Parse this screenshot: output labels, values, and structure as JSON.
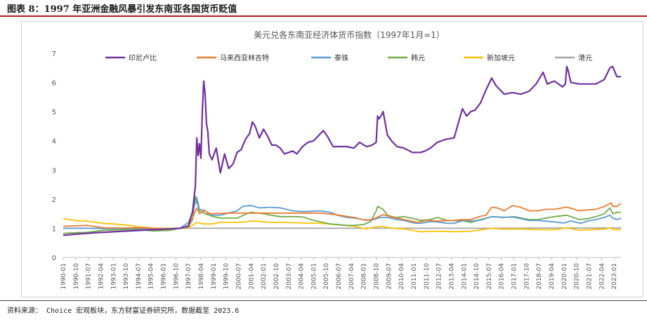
{
  "figure": {
    "title": "图表 8：1997 年亚洲金融风暴引发东南亚各国货币贬值",
    "source": "资料来源： Choice 宏观板块，东方财富证券研究所，数据截至 2023.6"
  },
  "chart_data": {
    "type": "line",
    "title": "美元兑各东南亚经济体货币指数（1997年1月=1）",
    "xlabel": "",
    "ylabel": "",
    "ylim": [
      0,
      7
    ],
    "yticks": [
      0,
      1,
      2,
      3,
      4,
      5,
      6,
      7
    ],
    "xlim": [
      "1990-01",
      "2023-06"
    ],
    "xticks": [
      "1990-01",
      "1990-10",
      "1991-07",
      "1992-04",
      "1993-01",
      "1993-10",
      "1994-07",
      "1995-04",
      "1996-01",
      "1996-10",
      "1997-07",
      "1998-04",
      "1999-01",
      "1999-10",
      "2000-07",
      "2001-04",
      "2002-01",
      "2002-10",
      "2003-07",
      "2004-04",
      "2005-01",
      "2005-10",
      "2006-07",
      "2007-04",
      "2008-01",
      "2008-10",
      "2009-07",
      "2010-04",
      "2011-01",
      "2011-10",
      "2012-07",
      "2013-04",
      "2014-01",
      "2014-10",
      "2015-07",
      "2016-04",
      "2017-01",
      "2017-10",
      "2018-07",
      "2019-04",
      "2020-01",
      "2020-10",
      "2021-07",
      "2022-04",
      "2023-01"
    ],
    "grid": false,
    "legend": "top",
    "series": [
      {
        "name": "印尼卢比",
        "color": "#7030a0",
        "x": [
          "1990-01",
          "1991-01",
          "1992-01",
          "1993-01",
          "1994-01",
          "1995-01",
          "1996-01",
          "1997-01",
          "1997-07",
          "1997-10",
          "1997-12",
          "1998-01",
          "1998-02",
          "1998-03",
          "1998-04",
          "1998-05",
          "1998-06",
          "1998-07",
          "1998-08",
          "1998-09",
          "1998-10",
          "1998-12",
          "1999-03",
          "1999-06",
          "1999-09",
          "1999-12",
          "2000-03",
          "2000-06",
          "2000-09",
          "2000-12",
          "2001-03",
          "2001-05",
          "2001-07",
          "2001-10",
          "2002-01",
          "2002-04",
          "2002-07",
          "2002-10",
          "2003-01",
          "2003-04",
          "2003-07",
          "2003-10",
          "2004-01",
          "2004-05",
          "2004-09",
          "2005-01",
          "2005-05",
          "2005-08",
          "2005-11",
          "2006-03",
          "2006-07",
          "2007-01",
          "2007-06",
          "2007-10",
          "2008-03",
          "2008-07",
          "2008-10",
          "2008-11",
          "2008-12",
          "2009-02",
          "2009-03",
          "2009-06",
          "2009-09",
          "2010-01",
          "2010-06",
          "2010-12",
          "2011-06",
          "2011-09",
          "2012-01",
          "2012-06",
          "2012-12",
          "2013-06",
          "2013-09",
          "2013-12",
          "2014-03",
          "2014-06",
          "2014-09",
          "2015-01",
          "2015-05",
          "2015-09",
          "2015-12",
          "2016-06",
          "2016-12",
          "2017-06",
          "2017-12",
          "2018-05",
          "2018-10",
          "2019-01",
          "2019-06",
          "2019-12",
          "2020-02",
          "2020-03",
          "2020-04",
          "2020-06",
          "2020-12",
          "2021-06",
          "2021-12",
          "2022-06",
          "2022-10",
          "2022-12",
          "2023-03",
          "2023-06"
        ],
        "values": [
          0.76,
          0.81,
          0.85,
          0.88,
          0.91,
          0.94,
          0.97,
          1.0,
          1.08,
          1.57,
          2.45,
          4.1,
          3.5,
          3.9,
          3.4,
          5.0,
          6.05,
          5.6,
          4.6,
          4.3,
          3.55,
          3.35,
          3.75,
          2.9,
          3.55,
          3.05,
          3.2,
          3.6,
          3.7,
          4.05,
          4.25,
          4.65,
          4.5,
          4.1,
          4.4,
          4.15,
          3.85,
          3.85,
          3.75,
          3.55,
          3.6,
          3.65,
          3.55,
          3.8,
          3.95,
          4.0,
          4.2,
          4.35,
          4.15,
          3.8,
          3.8,
          3.8,
          3.75,
          3.95,
          3.8,
          3.85,
          3.95,
          4.85,
          4.75,
          4.9,
          5.0,
          4.2,
          4.0,
          3.8,
          3.75,
          3.6,
          3.6,
          3.65,
          3.75,
          3.95,
          4.05,
          4.1,
          4.6,
          5.1,
          4.85,
          5.0,
          5.05,
          5.3,
          5.75,
          6.15,
          5.9,
          5.6,
          5.65,
          5.6,
          5.7,
          5.95,
          6.35,
          5.95,
          6.05,
          5.85,
          5.95,
          6.55,
          6.4,
          6.0,
          5.95,
          5.95,
          5.95,
          6.1,
          6.5,
          6.55,
          6.2,
          6.2
        ]
      },
      {
        "name": "马来西亚林吉特",
        "color": "#ed7d31",
        "x": [
          "1990-01",
          "1991-06",
          "1992-06",
          "1993-06",
          "1994-06",
          "1995-06",
          "1996-06",
          "1997-01",
          "1997-07",
          "1997-10",
          "1998-01",
          "1998-03",
          "1998-07",
          "1998-09",
          "2000-01",
          "2005-07",
          "2006-06",
          "2007-06",
          "2008-03",
          "2008-07",
          "2009-03",
          "2009-09",
          "2010-06",
          "2011-04",
          "2011-10",
          "2012-06",
          "2013-06",
          "2013-12",
          "2014-06",
          "2014-12",
          "2015-05",
          "2015-09",
          "2016-01",
          "2016-06",
          "2016-12",
          "2017-06",
          "2017-12",
          "2018-06",
          "2018-12",
          "2019-06",
          "2020-03",
          "2020-12",
          "2021-06",
          "2021-12",
          "2022-06",
          "2022-11",
          "2022-12",
          "2023-03",
          "2023-06"
        ],
        "values": [
          1.07,
          1.1,
          1.02,
          1.01,
          1.02,
          1.0,
          0.99,
          1.0,
          1.06,
          1.35,
          1.7,
          1.5,
          1.62,
          1.5,
          1.52,
          1.52,
          1.46,
          1.37,
          1.27,
          1.3,
          1.47,
          1.39,
          1.3,
          1.2,
          1.27,
          1.25,
          1.27,
          1.3,
          1.3,
          1.4,
          1.45,
          1.72,
          1.7,
          1.6,
          1.78,
          1.72,
          1.6,
          1.6,
          1.65,
          1.65,
          1.73,
          1.6,
          1.63,
          1.65,
          1.75,
          1.87,
          1.75,
          1.75,
          1.85
        ]
      },
      {
        "name": "泰铢",
        "color": "#5b9bd5",
        "x": [
          "1990-01",
          "1991-06",
          "1992-06",
          "1993-06",
          "1994-06",
          "1995-06",
          "1996-06",
          "1997-01",
          "1997-07",
          "1997-10",
          "1998-01",
          "1998-03",
          "1998-07",
          "1998-12",
          "1999-06",
          "2000-06",
          "2000-10",
          "2001-04",
          "2001-10",
          "2002-06",
          "2003-01",
          "2003-10",
          "2004-06",
          "2005-06",
          "2006-01",
          "2006-06",
          "2007-01",
          "2007-06",
          "2008-01",
          "2008-06",
          "2009-01",
          "2009-06",
          "2010-01",
          "2010-06",
          "2011-01",
          "2011-06",
          "2012-01",
          "2012-06",
          "2013-01",
          "2013-06",
          "2014-01",
          "2014-06",
          "2015-01",
          "2015-09",
          "2016-06",
          "2017-01",
          "2017-12",
          "2018-06",
          "2019-06",
          "2020-01",
          "2020-06",
          "2021-01",
          "2021-06",
          "2021-12",
          "2022-06",
          "2022-10",
          "2022-12",
          "2023-03",
          "2023-06"
        ],
        "values": [
          1.0,
          1.0,
          0.99,
          0.99,
          0.99,
          0.98,
          0.99,
          1.0,
          1.2,
          1.55,
          2.05,
          1.65,
          1.6,
          1.45,
          1.45,
          1.6,
          1.75,
          1.78,
          1.7,
          1.72,
          1.7,
          1.6,
          1.57,
          1.6,
          1.55,
          1.45,
          1.37,
          1.35,
          1.3,
          1.27,
          1.37,
          1.37,
          1.3,
          1.27,
          1.18,
          1.17,
          1.23,
          1.22,
          1.17,
          1.17,
          1.27,
          1.25,
          1.28,
          1.4,
          1.38,
          1.38,
          1.27,
          1.27,
          1.22,
          1.18,
          1.25,
          1.17,
          1.25,
          1.3,
          1.37,
          1.45,
          1.35,
          1.3,
          1.35
        ]
      },
      {
        "name": "韩元",
        "color": "#70ad47",
        "x": [
          "1990-01",
          "1991-06",
          "1992-06",
          "1993-06",
          "1994-06",
          "1995-06",
          "1996-06",
          "1997-01",
          "1997-07",
          "1997-10",
          "1997-12",
          "1998-01",
          "1998-03",
          "1998-07",
          "1999-01",
          "1999-06",
          "2000-06",
          "2001-01",
          "2001-04",
          "2002-01",
          "2002-06",
          "2003-01",
          "2004-01",
          "2004-06",
          "2005-01",
          "2006-01",
          "2007-01",
          "2007-06",
          "2008-01",
          "2008-06",
          "2008-10",
          "2008-11",
          "2009-03",
          "2009-06",
          "2009-12",
          "2010-06",
          "2011-01",
          "2011-06",
          "2012-01",
          "2012-06",
          "2013-01",
          "2014-01",
          "2014-06",
          "2015-01",
          "2015-09",
          "2016-06",
          "2017-01",
          "2017-12",
          "2018-06",
          "2019-06",
          "2020-03",
          "2020-12",
          "2021-06",
          "2021-12",
          "2022-06",
          "2022-10",
          "2022-12",
          "2023-03",
          "2023-06"
        ],
        "values": [
          0.83,
          0.86,
          0.93,
          0.95,
          0.96,
          0.91,
          0.93,
          1.0,
          1.05,
          1.3,
          2.1,
          1.9,
          1.6,
          1.5,
          1.4,
          1.35,
          1.35,
          1.5,
          1.55,
          1.5,
          1.45,
          1.4,
          1.4,
          1.38,
          1.27,
          1.15,
          1.1,
          1.1,
          1.13,
          1.23,
          1.6,
          1.75,
          1.65,
          1.45,
          1.37,
          1.4,
          1.33,
          1.27,
          1.3,
          1.37,
          1.27,
          1.25,
          1.2,
          1.3,
          1.4,
          1.37,
          1.4,
          1.3,
          1.3,
          1.4,
          1.45,
          1.3,
          1.33,
          1.4,
          1.5,
          1.7,
          1.5,
          1.55,
          1.55
        ]
      },
      {
        "name": "新加坡元",
        "color": "#ffc000",
        "x": [
          "1990-01",
          "1990-06",
          "1991-01",
          "1991-06",
          "1992-01",
          "1992-06",
          "1993-01",
          "1993-06",
          "1994-01",
          "1994-06",
          "1995-01",
          "1995-06",
          "1996-01",
          "1996-06",
          "1997-01",
          "1997-07",
          "1997-10",
          "1998-01",
          "1998-06",
          "1998-12",
          "1999-06",
          "2000-06",
          "2001-06",
          "2002-06",
          "2003-06",
          "2004-06",
          "2005-06",
          "2006-06",
          "2007-06",
          "2008-03",
          "2008-10",
          "2009-03",
          "2009-06",
          "2010-06",
          "2011-06",
          "2012-06",
          "2013-06",
          "2014-06",
          "2015-09",
          "2016-06",
          "2017-06",
          "2018-06",
          "2019-06",
          "2020-03",
          "2020-12",
          "2021-06",
          "2022-06",
          "2022-10",
          "2023-01",
          "2023-06"
        ],
        "values": [
          1.33,
          1.3,
          1.25,
          1.25,
          1.2,
          1.17,
          1.15,
          1.13,
          1.1,
          1.05,
          1.03,
          1.0,
          1.0,
          1.0,
          1.0,
          1.03,
          1.1,
          1.2,
          1.15,
          1.15,
          1.2,
          1.2,
          1.25,
          1.2,
          1.2,
          1.18,
          1.17,
          1.12,
          1.07,
          0.98,
          1.05,
          1.07,
          1.02,
          0.98,
          0.88,
          0.9,
          0.88,
          0.9,
          1.0,
          0.97,
          0.98,
          0.95,
          0.95,
          1.02,
          0.93,
          0.95,
          0.97,
          1.02,
          0.95,
          0.95
        ]
      },
      {
        "name": "港元",
        "color": "#a5a5a5",
        "x": [
          "1990-01",
          "1993-01",
          "1996-01",
          "1997-01",
          "2000-01",
          "2005-01",
          "2008-01",
          "2010-01",
          "2015-01",
          "2020-01",
          "2023-06"
        ],
        "values": [
          1.0,
          1.0,
          1.0,
          1.0,
          1.0,
          1.0,
          1.0,
          1.0,
          1.0,
          1.01,
          1.01
        ]
      }
    ]
  }
}
